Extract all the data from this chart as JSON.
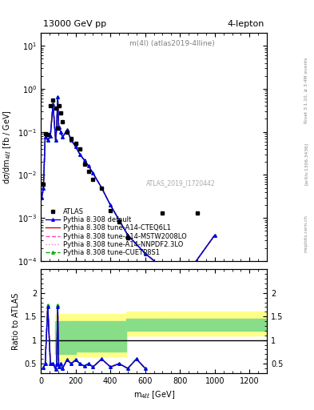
{
  "title_top": "13000 GeV pp",
  "title_right": "4-lepton",
  "subplot_title": "m(4l) (atlas2019-4lline)",
  "watermark": "ATLAS_2019_I1720442",
  "rivet_label": "Rivet 3.1.10, ≥ 3.4M events",
  "arxiv_label": "[arXiv:1306.3436]",
  "mcplots_label": "mcplots.cern.ch",
  "xlabel": "m_{4ell} [GeV]",
  "ylabel": "dσ/dm_{4ell} [fb / GeV]",
  "ratio_ylabel": "Ratio to ATLAS",
  "data_x": [
    15,
    25,
    40,
    55,
    70,
    85,
    95,
    105,
    115,
    125,
    150,
    175,
    200,
    225,
    250,
    275,
    300,
    350,
    400,
    450,
    500,
    700,
    900
  ],
  "data_y": [
    0.006,
    0.09,
    0.085,
    0.4,
    0.55,
    0.35,
    0.12,
    0.4,
    0.28,
    0.17,
    0.1,
    0.07,
    0.055,
    0.04,
    0.018,
    0.012,
    0.008,
    0.005,
    0.0015,
    0.0008,
    0.00035,
    0.0013,
    0.0013
  ],
  "mc_x": [
    5,
    15,
    25,
    40,
    55,
    70,
    85,
    91,
    97,
    103,
    115,
    125,
    150,
    175,
    200,
    225,
    250,
    275,
    300,
    350,
    400,
    450,
    500,
    600,
    700,
    800,
    1000
  ],
  "mc_default_y": [
    0.003,
    0.005,
    0.075,
    0.065,
    0.08,
    0.45,
    0.065,
    0.12,
    0.65,
    0.13,
    0.1,
    0.075,
    0.11,
    0.065,
    0.045,
    0.03,
    0.022,
    0.016,
    0.011,
    0.005,
    0.002,
    0.0009,
    0.0004,
    0.00015,
    7e-05,
    3e-05,
    0.0004
  ],
  "mc_cteq_y": [
    0.003,
    0.005,
    0.075,
    0.065,
    0.08,
    0.45,
    0.065,
    0.12,
    0.65,
    0.13,
    0.1,
    0.075,
    0.11,
    0.065,
    0.045,
    0.03,
    0.022,
    0.016,
    0.011,
    0.005,
    0.002,
    0.0009,
    0.0004,
    0.00015,
    7e-05,
    3e-05,
    0.0004
  ],
  "mc_mstw_y": [
    0.003,
    0.005,
    0.075,
    0.065,
    0.08,
    0.45,
    0.065,
    0.12,
    0.65,
    0.13,
    0.1,
    0.075,
    0.11,
    0.065,
    0.045,
    0.03,
    0.022,
    0.016,
    0.011,
    0.005,
    0.002,
    0.0009,
    0.0004,
    0.00015,
    7e-05,
    3e-05,
    0.0004
  ],
  "mc_nnpdf_y": [
    0.003,
    0.005,
    0.075,
    0.065,
    0.08,
    0.45,
    0.065,
    0.12,
    0.65,
    0.13,
    0.1,
    0.075,
    0.11,
    0.065,
    0.045,
    0.03,
    0.022,
    0.016,
    0.011,
    0.005,
    0.002,
    0.0009,
    0.0004,
    0.00015,
    7e-05,
    3e-05,
    0.0004
  ],
  "mc_cuetp_y": [
    0.003,
    0.005,
    0.075,
    0.065,
    0.08,
    0.45,
    0.065,
    0.12,
    0.65,
    0.13,
    0.1,
    0.075,
    0.11,
    0.065,
    0.045,
    0.03,
    0.022,
    0.016,
    0.011,
    0.005,
    0.002,
    0.0009,
    0.0004,
    0.00015,
    7e-05,
    3e-05,
    0.0004
  ],
  "ratio_x": [
    15,
    25,
    40,
    55,
    70,
    85,
    91,
    97,
    103,
    115,
    125,
    150,
    175,
    200,
    225,
    250,
    275,
    300,
    350,
    400,
    450,
    500,
    550,
    600
  ],
  "ratio_default": [
    0.42,
    0.5,
    1.7,
    0.5,
    0.5,
    0.38,
    0.48,
    1.7,
    0.43,
    0.5,
    0.4,
    0.58,
    0.5,
    0.58,
    0.5,
    0.45,
    0.5,
    0.43,
    0.6,
    0.43,
    0.5,
    0.4,
    0.6,
    0.4
  ],
  "ratio_cteq": [
    0.42,
    0.5,
    1.75,
    0.5,
    0.5,
    0.38,
    0.5,
    1.75,
    0.43,
    0.5,
    0.4,
    0.58,
    0.5,
    0.58,
    0.5,
    0.45,
    0.5,
    0.43,
    0.6,
    0.43,
    0.5,
    0.4,
    0.6,
    0.4
  ],
  "ratio_mstw": [
    0.42,
    0.5,
    1.75,
    0.5,
    0.5,
    0.38,
    0.5,
    1.75,
    0.43,
    0.5,
    0.4,
    0.58,
    0.5,
    0.58,
    0.5,
    0.45,
    0.5,
    0.43,
    0.6,
    0.43,
    0.5,
    0.4,
    0.6,
    0.4
  ],
  "ratio_nnpdf": [
    0.42,
    0.5,
    1.75,
    0.5,
    0.5,
    0.38,
    0.5,
    1.75,
    0.43,
    0.5,
    0.4,
    0.58,
    0.5,
    0.58,
    0.5,
    0.45,
    0.5,
    0.43,
    0.6,
    0.43,
    0.5,
    0.4,
    0.6,
    0.4
  ],
  "ratio_cuetp": [
    0.42,
    0.5,
    1.75,
    0.5,
    0.5,
    0.38,
    0.5,
    1.75,
    0.43,
    0.5,
    0.4,
    0.58,
    0.5,
    0.58,
    0.5,
    0.45,
    0.5,
    0.43,
    0.6,
    0.43,
    0.5,
    0.4,
    0.6,
    0.4
  ],
  "color_default": "#0000ee",
  "color_cteq": "#dd0000",
  "color_mstw": "#ff44bb",
  "color_nnpdf": "#dd88cc",
  "color_cuetp": "#00aa00",
  "color_data": "#000000",
  "ylim_main": [
    0.0001,
    20
  ],
  "xlim_main": [
    0,
    1300
  ],
  "xlim_ratio": [
    0,
    1300
  ],
  "labels_mc": [
    "Pythia 8.308 default",
    "Pythia 8.308 tune-A14-CTEQ6L1",
    "Pythia 8.308 tune-A14-MSTW2008LO",
    "Pythia 8.308 tune-A14-NNPDF2.3LO",
    "Pythia 8.308 tune-CUETP8S1"
  ]
}
